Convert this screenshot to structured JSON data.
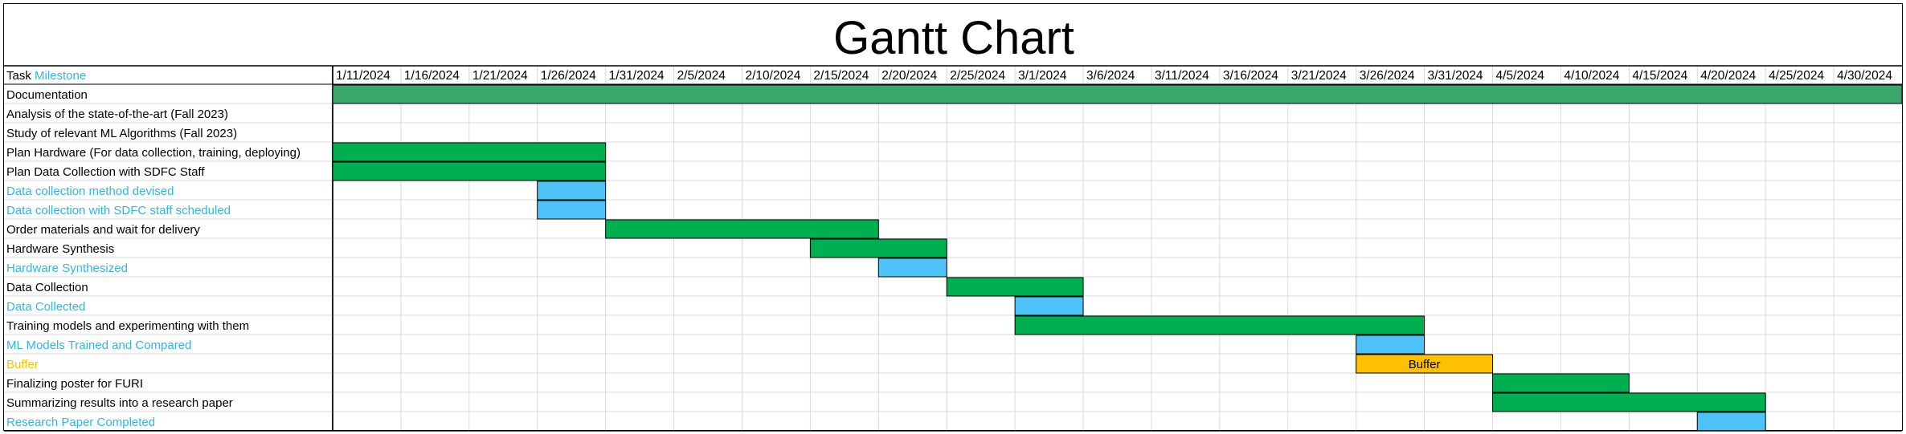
{
  "title": "Gantt Chart",
  "header": {
    "task_label": "Task",
    "milestone_label": "Milestone"
  },
  "colors": {
    "task": "#00B050",
    "milestone": "#4FC3F7",
    "buffer": "#FFC000",
    "documentation": "#3AA66A",
    "milestone_text": "#33B5E5",
    "buffer_text": "#FFC000"
  },
  "chart_data": {
    "type": "gantt",
    "title": "Gantt Chart",
    "timeline_start": "1/11/2024",
    "timeline_end": "5/5/2024",
    "date_ticks": [
      "1/11/2024",
      "1/16/2024",
      "1/21/2024",
      "1/26/2024",
      "1/31/2024",
      "2/5/2024",
      "2/10/2024",
      "2/15/2024",
      "2/20/2024",
      "2/25/2024",
      "3/1/2024",
      "3/6/2024",
      "3/11/2024",
      "3/16/2024",
      "3/21/2024",
      "3/26/2024",
      "3/31/2024",
      "4/5/2024",
      "4/10/2024",
      "4/15/2024",
      "4/20/2024",
      "4/25/2024",
      "4/30/2024"
    ],
    "tasks": [
      {
        "name": "Documentation",
        "kind": "documentation",
        "start": "1/11/2024",
        "end": "5/5/2024"
      },
      {
        "name": "Analysis of the state-of-the-art (Fall 2023)",
        "kind": "task",
        "start": null,
        "end": null
      },
      {
        "name": "Study of relevant ML Algorithms (Fall 2023)",
        "kind": "task",
        "start": null,
        "end": null
      },
      {
        "name": "Plan Hardware (For data collection, training, deploying)",
        "kind": "task",
        "start": "1/11/2024",
        "end": "1/31/2024"
      },
      {
        "name": "Plan Data Collection with SDFC Staff",
        "kind": "task",
        "start": "1/11/2024",
        "end": "1/31/2024"
      },
      {
        "name": "Data collection method devised",
        "kind": "milestone",
        "start": "1/26/2024",
        "end": "1/31/2024"
      },
      {
        "name": "Data collection with SDFC staff scheduled",
        "kind": "milestone",
        "start": "1/26/2024",
        "end": "1/31/2024"
      },
      {
        "name": "Order materials and wait for delivery",
        "kind": "task",
        "start": "1/31/2024",
        "end": "2/20/2024"
      },
      {
        "name": "Hardware Synthesis",
        "kind": "task",
        "start": "2/15/2024",
        "end": "2/25/2024"
      },
      {
        "name": "Hardware Synthesized",
        "kind": "milestone",
        "start": "2/20/2024",
        "end": "2/25/2024"
      },
      {
        "name": "Data Collection",
        "kind": "task",
        "start": "2/25/2024",
        "end": "3/6/2024"
      },
      {
        "name": "Data Collected",
        "kind": "milestone",
        "start": "3/1/2024",
        "end": "3/6/2024"
      },
      {
        "name": "Training models and experimenting with them",
        "kind": "task",
        "start": "3/1/2024",
        "end": "3/31/2024"
      },
      {
        "name": "ML Models Trained and Compared",
        "kind": "milestone",
        "start": "3/26/2024",
        "end": "3/31/2024"
      },
      {
        "name": "Buffer",
        "kind": "buffer",
        "start": "3/26/2024",
        "end": "4/5/2024",
        "bar_label": "Buffer"
      },
      {
        "name": "Finalizing poster for FURI",
        "kind": "task",
        "start": "4/5/2024",
        "end": "4/15/2024"
      },
      {
        "name": "Summarizing results into a research paper",
        "kind": "task",
        "start": "4/5/2024",
        "end": "4/25/2024"
      },
      {
        "name": "Research Paper Completed",
        "kind": "milestone",
        "start": "4/20/2024",
        "end": "4/25/2024"
      }
    ]
  }
}
